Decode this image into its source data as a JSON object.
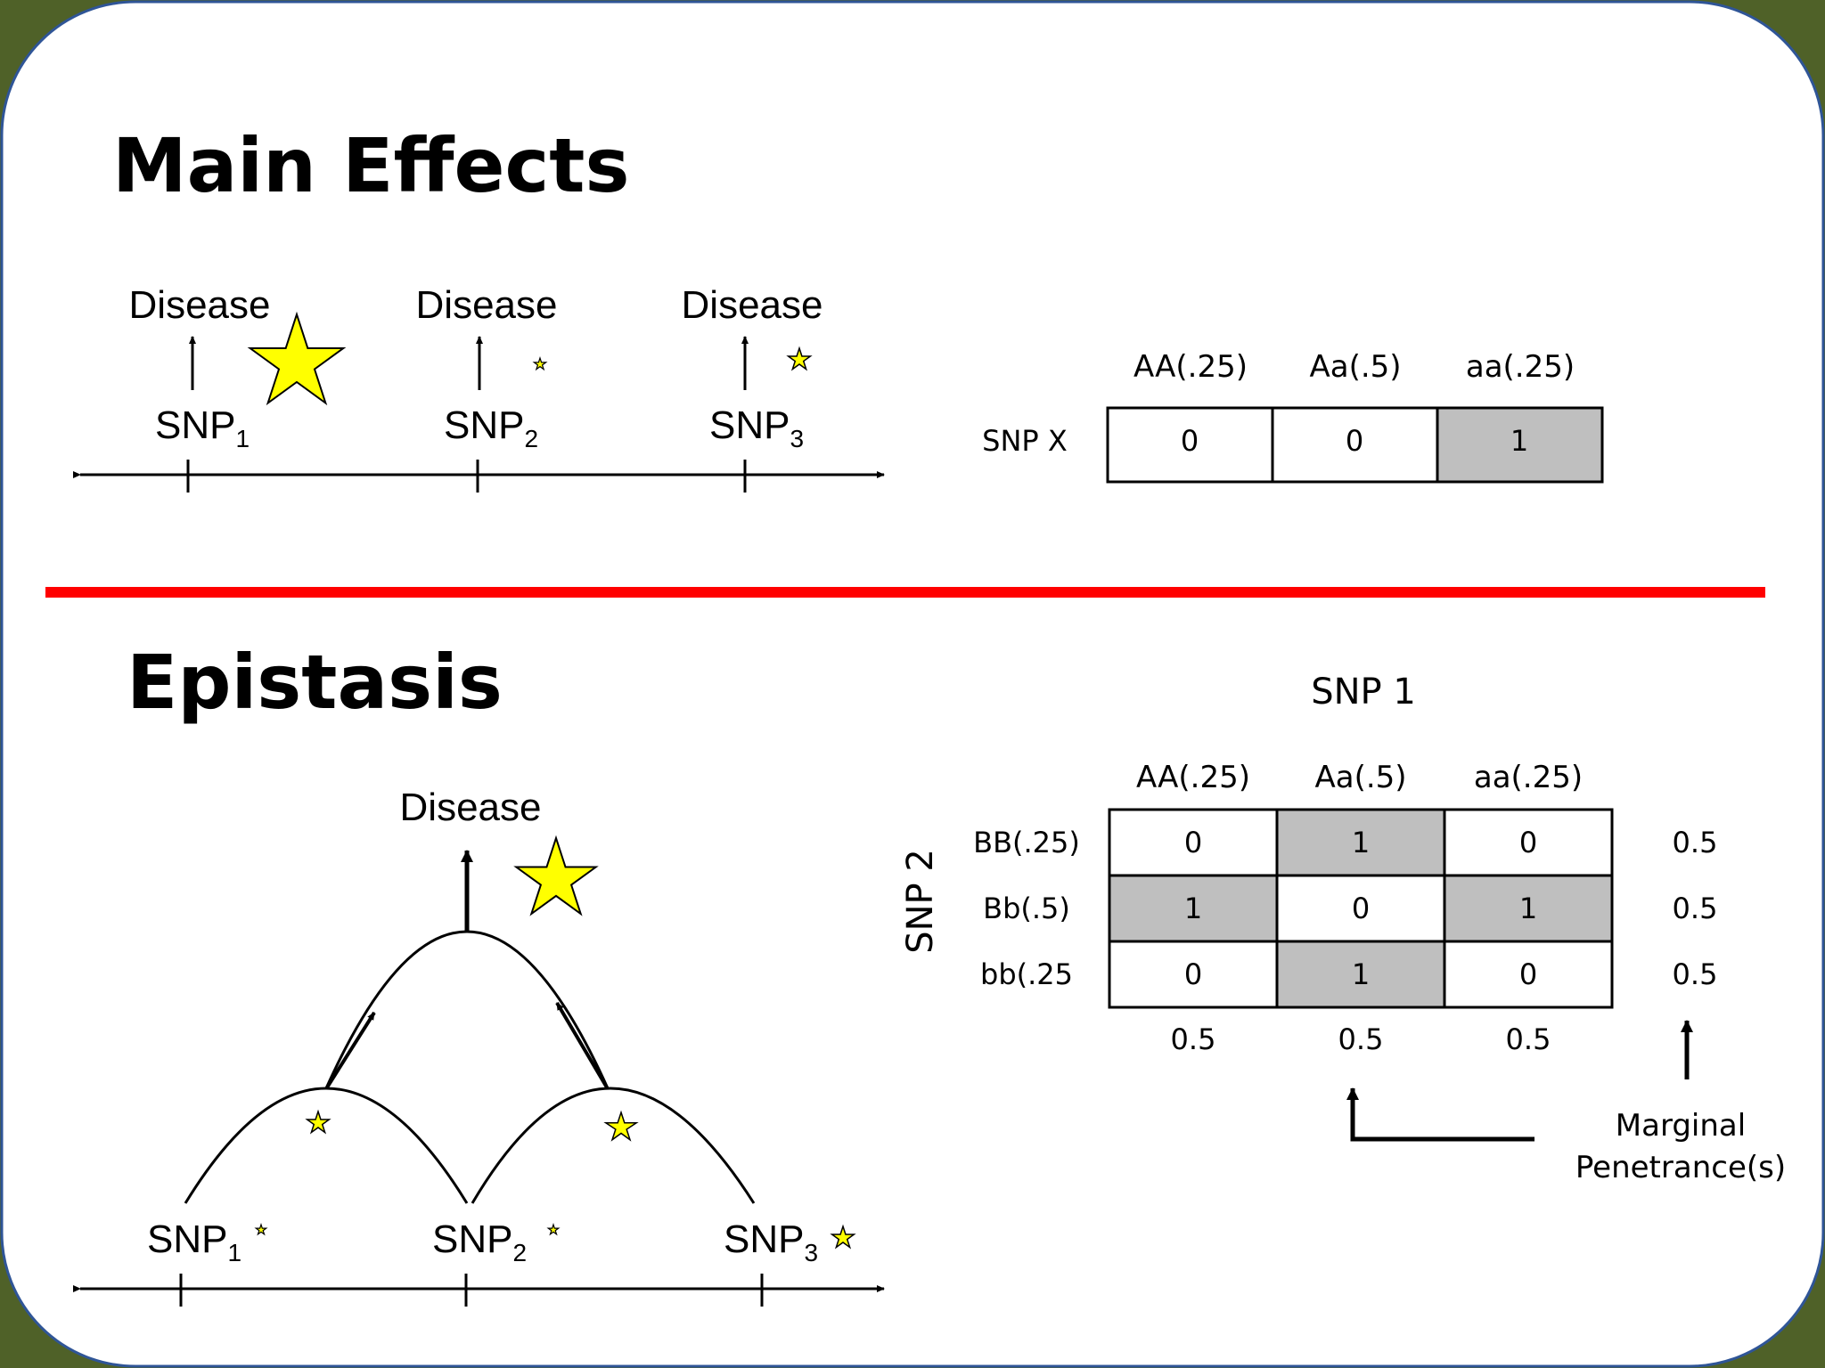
{
  "main_effects": {
    "title": "Main Effects",
    "disease_label": "Disease",
    "snp_prefix": "SNP",
    "snps": [
      "1",
      "2",
      "3"
    ],
    "table": {
      "row_label": "SNP X",
      "columns": [
        "AA(.25)",
        "Aa(.5)",
        "aa(.25)"
      ],
      "values": [
        "0",
        "0",
        "1"
      ],
      "shaded": [
        false,
        false,
        true
      ]
    }
  },
  "epistasis": {
    "title": "Epistasis",
    "disease_label": "Disease",
    "snp_prefix": "SNP",
    "snps": [
      "1",
      "2",
      "3"
    ],
    "table": {
      "column_title": "SNP 1",
      "row_title": "SNP 2",
      "columns": [
        "AA(.25)",
        "Aa(.5)",
        "aa(.25)"
      ],
      "rows": [
        {
          "label": "BB(.25)",
          "values": [
            "0",
            "1",
            "0"
          ],
          "shaded": [
            false,
            true,
            false
          ],
          "marginal": "0.5"
        },
        {
          "label": "Bb(.5)",
          "values": [
            "1",
            "0",
            "1"
          ],
          "shaded": [
            true,
            false,
            true
          ],
          "marginal": "0.5"
        },
        {
          "label": "bb(.25",
          "values": [
            "0",
            "1",
            "0"
          ],
          "shaded": [
            false,
            true,
            false
          ],
          "marginal": "0.5"
        }
      ],
      "column_marginals": [
        "0.5",
        "0.5",
        "0.5"
      ],
      "marginal_caption_line1": "Marginal",
      "marginal_caption_line2": "Penetrance(s)"
    }
  },
  "colors": {
    "background": "#4f6128",
    "panel": "#ffffff",
    "panel_border": "#2f5597",
    "divider": "#ff0000",
    "star_fill": "#ffff00",
    "shaded_cell": "#bfbfbf"
  },
  "icons": {
    "effect_size": "star-icon",
    "arrow": "up-arrow-icon"
  }
}
